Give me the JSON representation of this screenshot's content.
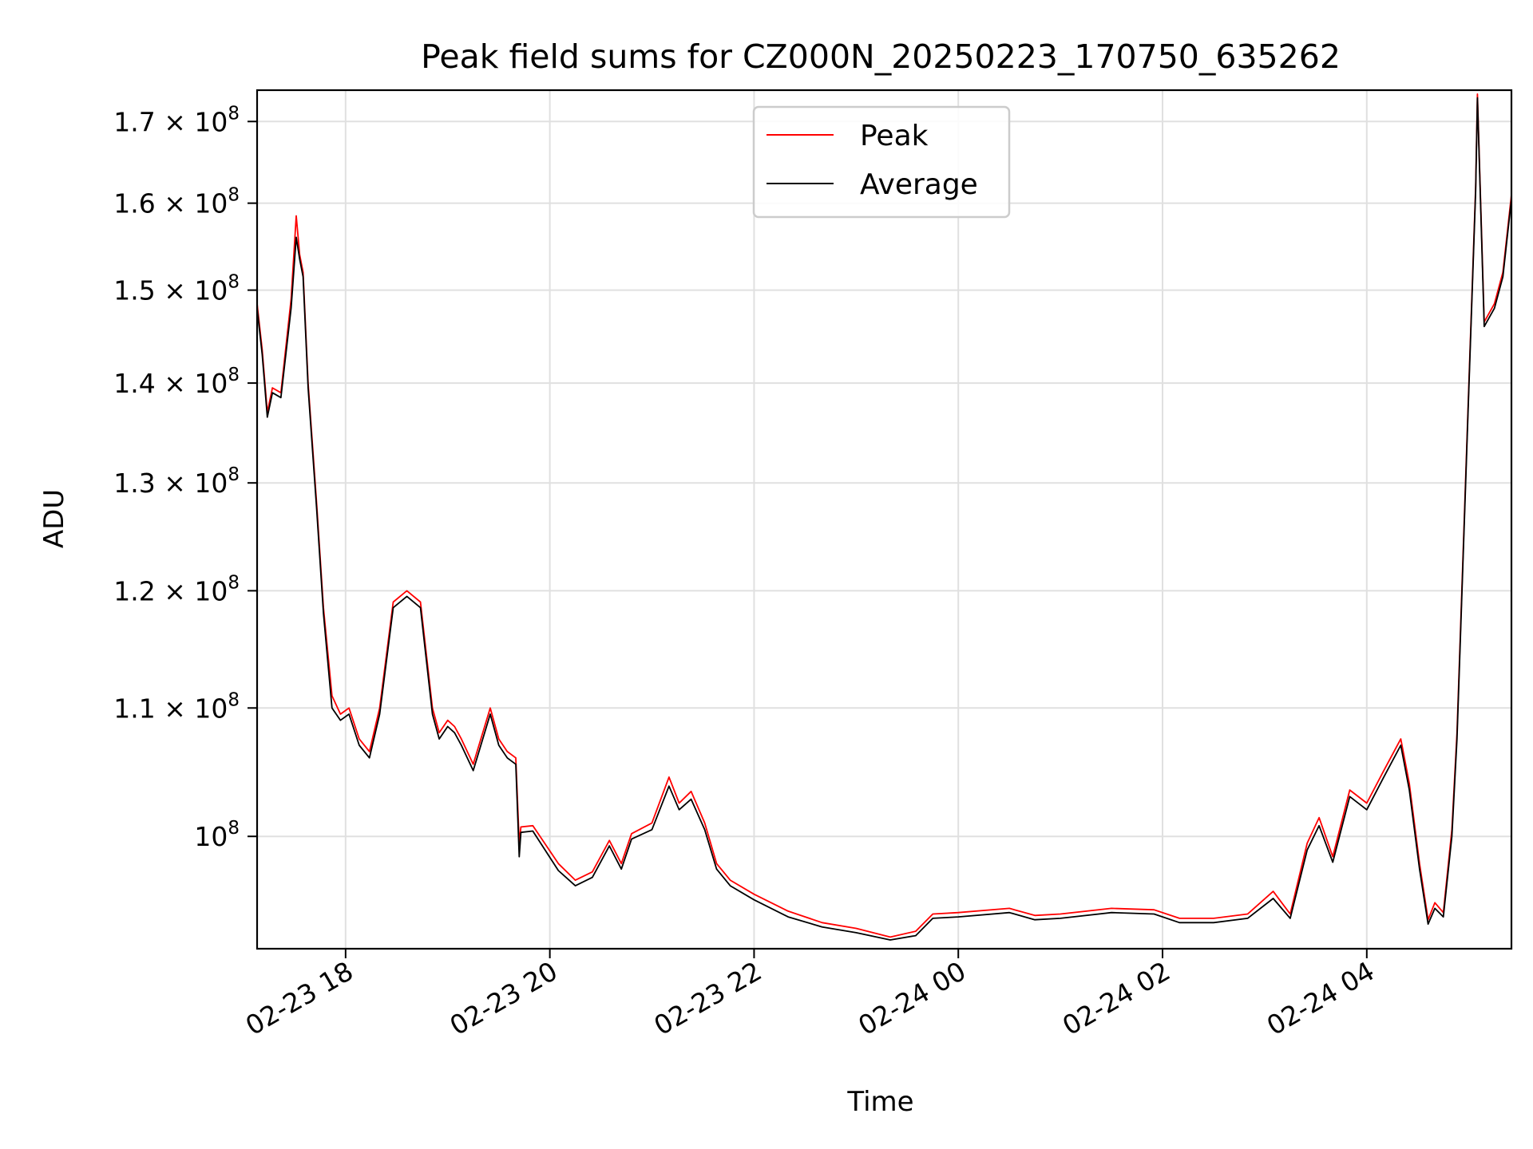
{
  "chart_data": {
    "type": "line",
    "title": "Peak field sums for CZ000N_20250223_170750_635262",
    "xlabel": "Time",
    "ylabel": "ADU",
    "yscale": "log",
    "grid": true,
    "legend_position": "upper-center",
    "xlim": [
      "2025-02-23 17:08",
      "2025-02-24 05:25"
    ],
    "ylim": [
      92000000,
      174000000
    ],
    "x_ticks": [
      {
        "value": "2025-02-23 18:00",
        "label": "02-23 18"
      },
      {
        "value": "2025-02-23 20:00",
        "label": "02-23 20"
      },
      {
        "value": "2025-02-23 22:00",
        "label": "02-23 22"
      },
      {
        "value": "2025-02-24 00:00",
        "label": "02-24 00"
      },
      {
        "value": "2025-02-24 02:00",
        "label": "02-24 02"
      },
      {
        "value": "2025-02-24 04:00",
        "label": "02-24 04"
      }
    ],
    "y_ticks": [
      {
        "value": 100000000,
        "mant": "10",
        "exp": "8"
      },
      {
        "value": 110000000,
        "mant": "1.1 × 10",
        "exp": "8"
      },
      {
        "value": 120000000,
        "mant": "1.2 × 10",
        "exp": "8"
      },
      {
        "value": 130000000,
        "mant": "1.3 × 10",
        "exp": "8"
      },
      {
        "value": 140000000,
        "mant": "1.4 × 10",
        "exp": "8"
      },
      {
        "value": 150000000,
        "mant": "1.5 × 10",
        "exp": "8"
      },
      {
        "value": 160000000,
        "mant": "1.6 × 10",
        "exp": "8"
      },
      {
        "value": 170000000,
        "mant": "1.7 × 10",
        "exp": "8"
      }
    ],
    "series": [
      {
        "name": "Peak",
        "color": "#ff0000",
        "x": [
          "2025-02-23 17:08",
          "2025-02-23 17:11",
          "2025-02-23 17:14",
          "2025-02-23 17:17",
          "2025-02-23 17:22",
          "2025-02-23 17:28",
          "2025-02-23 17:31",
          "2025-02-23 17:33",
          "2025-02-23 17:35",
          "2025-02-23 17:38",
          "2025-02-23 17:43",
          "2025-02-23 17:47",
          "2025-02-23 17:52",
          "2025-02-23 17:57",
          "2025-02-23 18:02",
          "2025-02-23 18:08",
          "2025-02-23 18:14",
          "2025-02-23 18:20",
          "2025-02-23 18:28",
          "2025-02-23 18:36",
          "2025-02-23 18:44",
          "2025-02-23 18:51",
          "2025-02-23 18:55",
          "2025-02-23 19:00",
          "2025-02-23 19:04",
          "2025-02-23 19:08",
          "2025-02-23 19:15",
          "2025-02-23 19:25",
          "2025-02-23 19:30",
          "2025-02-23 19:35",
          "2025-02-23 19:40",
          "2025-02-23 19:42",
          "2025-02-23 19:43",
          "2025-02-23 19:50",
          "2025-02-23 20:05",
          "2025-02-23 20:15",
          "2025-02-23 20:25",
          "2025-02-23 20:35",
          "2025-02-23 20:42",
          "2025-02-23 20:48",
          "2025-02-23 21:00",
          "2025-02-23 21:10",
          "2025-02-23 21:16",
          "2025-02-23 21:23",
          "2025-02-23 21:31",
          "2025-02-23 21:38",
          "2025-02-23 21:46",
          "2025-02-23 22:00",
          "2025-02-23 22:20",
          "2025-02-23 22:40",
          "2025-02-23 23:00",
          "2025-02-23 23:20",
          "2025-02-23 23:35",
          "2025-02-23 23:45",
          "2025-02-24 00:00",
          "2025-02-24 00:30",
          "2025-02-24 00:45",
          "2025-02-24 01:00",
          "2025-02-24 01:30",
          "2025-02-24 01:55",
          "2025-02-24 02:10",
          "2025-02-24 02:30",
          "2025-02-24 02:50",
          "2025-02-24 03:05",
          "2025-02-24 03:15",
          "2025-02-24 03:25",
          "2025-02-24 03:32",
          "2025-02-24 03:40",
          "2025-02-24 03:50",
          "2025-02-24 04:00",
          "2025-02-24 04:10",
          "2025-02-24 04:20",
          "2025-02-24 04:25",
          "2025-02-24 04:31",
          "2025-02-24 04:36",
          "2025-02-24 04:40",
          "2025-02-24 04:45",
          "2025-02-24 04:50",
          "2025-02-24 04:53",
          "2025-02-24 05:00",
          "2025-02-24 05:04",
          "2025-02-24 05:05",
          "2025-02-24 05:09",
          "2025-02-24 05:15",
          "2025-02-24 05:20",
          "2025-02-24 05:25"
        ],
        "y": [
          148500000,
          143500000,
          137000000,
          139500000,
          139000000,
          149000000,
          158500000,
          154000000,
          152000000,
          140000000,
          128000000,
          118500000,
          111000000,
          109500000,
          110000000,
          107500000,
          106500000,
          110000000,
          119000000,
          120000000,
          119000000,
          110000000,
          108000000,
          109000000,
          108500000,
          107500000,
          105500000,
          110000000,
          107500000,
          106500000,
          106000000,
          99500000,
          100700000,
          100800000,
          98000000,
          96800000,
          97400000,
          99700000,
          98000000,
          100200000,
          101000000,
          104500000,
          102500000,
          103400000,
          101000000,
          98000000,
          96800000,
          95800000,
          94600000,
          93800000,
          93400000,
          92800000,
          93200000,
          94400000,
          94500000,
          94800000,
          94300000,
          94400000,
          94800000,
          94700000,
          94100000,
          94100000,
          94400000,
          96000000,
          94400000,
          99500000,
          101400000,
          98500000,
          103500000,
          102500000,
          105000000,
          107500000,
          104000000,
          98000000,
          94000000,
          95200000,
          94500000,
          100500000,
          108000000,
          140000000,
          162000000,
          173500000,
          146500000,
          148500000,
          152000000,
          161000000
        ]
      },
      {
        "name": "Average",
        "color": "#000000",
        "x": [
          "2025-02-23 17:08",
          "2025-02-23 17:11",
          "2025-02-23 17:14",
          "2025-02-23 17:17",
          "2025-02-23 17:22",
          "2025-02-23 17:28",
          "2025-02-23 17:31",
          "2025-02-23 17:33",
          "2025-02-23 17:35",
          "2025-02-23 17:38",
          "2025-02-23 17:43",
          "2025-02-23 17:47",
          "2025-02-23 17:52",
          "2025-02-23 17:57",
          "2025-02-23 18:02",
          "2025-02-23 18:08",
          "2025-02-23 18:14",
          "2025-02-23 18:20",
          "2025-02-23 18:28",
          "2025-02-23 18:36",
          "2025-02-23 18:44",
          "2025-02-23 18:51",
          "2025-02-23 18:55",
          "2025-02-23 19:00",
          "2025-02-23 19:04",
          "2025-02-23 19:08",
          "2025-02-23 19:15",
          "2025-02-23 19:25",
          "2025-02-23 19:30",
          "2025-02-23 19:35",
          "2025-02-23 19:40",
          "2025-02-23 19:42",
          "2025-02-23 19:43",
          "2025-02-23 19:50",
          "2025-02-23 20:05",
          "2025-02-23 20:15",
          "2025-02-23 20:25",
          "2025-02-23 20:35",
          "2025-02-23 20:42",
          "2025-02-23 20:48",
          "2025-02-23 21:00",
          "2025-02-23 21:10",
          "2025-02-23 21:16",
          "2025-02-23 21:23",
          "2025-02-23 21:31",
          "2025-02-23 21:38",
          "2025-02-23 21:46",
          "2025-02-23 22:00",
          "2025-02-23 22:20",
          "2025-02-23 22:40",
          "2025-02-23 23:00",
          "2025-02-23 23:20",
          "2025-02-23 23:35",
          "2025-02-23 23:45",
          "2025-02-24 00:00",
          "2025-02-24 00:30",
          "2025-02-24 00:45",
          "2025-02-24 01:00",
          "2025-02-24 01:30",
          "2025-02-24 01:55",
          "2025-02-24 02:10",
          "2025-02-24 02:30",
          "2025-02-24 02:50",
          "2025-02-24 03:05",
          "2025-02-24 03:15",
          "2025-02-24 03:25",
          "2025-02-24 03:32",
          "2025-02-24 03:40",
          "2025-02-24 03:50",
          "2025-02-24 04:00",
          "2025-02-24 04:10",
          "2025-02-24 04:20",
          "2025-02-24 04:25",
          "2025-02-24 04:31",
          "2025-02-24 04:36",
          "2025-02-24 04:40",
          "2025-02-24 04:45",
          "2025-02-24 04:50",
          "2025-02-24 04:53",
          "2025-02-24 05:00",
          "2025-02-24 05:04",
          "2025-02-24 05:05",
          "2025-02-24 05:09",
          "2025-02-24 05:15",
          "2025-02-24 05:20",
          "2025-02-24 05:25"
        ],
        "y": [
          148000000,
          143000000,
          136500000,
          139000000,
          138500000,
          148000000,
          156000000,
          153500000,
          151500000,
          139500000,
          127500000,
          118000000,
          110000000,
          109000000,
          109500000,
          107000000,
          106000000,
          109500000,
          118500000,
          119500000,
          118500000,
          109500000,
          107500000,
          108500000,
          108000000,
          107000000,
          105000000,
          109500000,
          107000000,
          106000000,
          105500000,
          98500000,
          100300000,
          100400000,
          97500000,
          96400000,
          97000000,
          99300000,
          97600000,
          99800000,
          100500000,
          103800000,
          102000000,
          102800000,
          100500000,
          97600000,
          96400000,
          95400000,
          94200000,
          93500000,
          93100000,
          92600000,
          92900000,
          94100000,
          94200000,
          94500000,
          94000000,
          94100000,
          94500000,
          94400000,
          93800000,
          93800000,
          94100000,
          95500000,
          94100000,
          99000000,
          100800000,
          98100000,
          103000000,
          102000000,
          104500000,
          107000000,
          103500000,
          97600000,
          93700000,
          94800000,
          94200000,
          100000000,
          107500000,
          139500000,
          161500000,
          173000000,
          146000000,
          148000000,
          151500000,
          160500000
        ]
      }
    ]
  }
}
